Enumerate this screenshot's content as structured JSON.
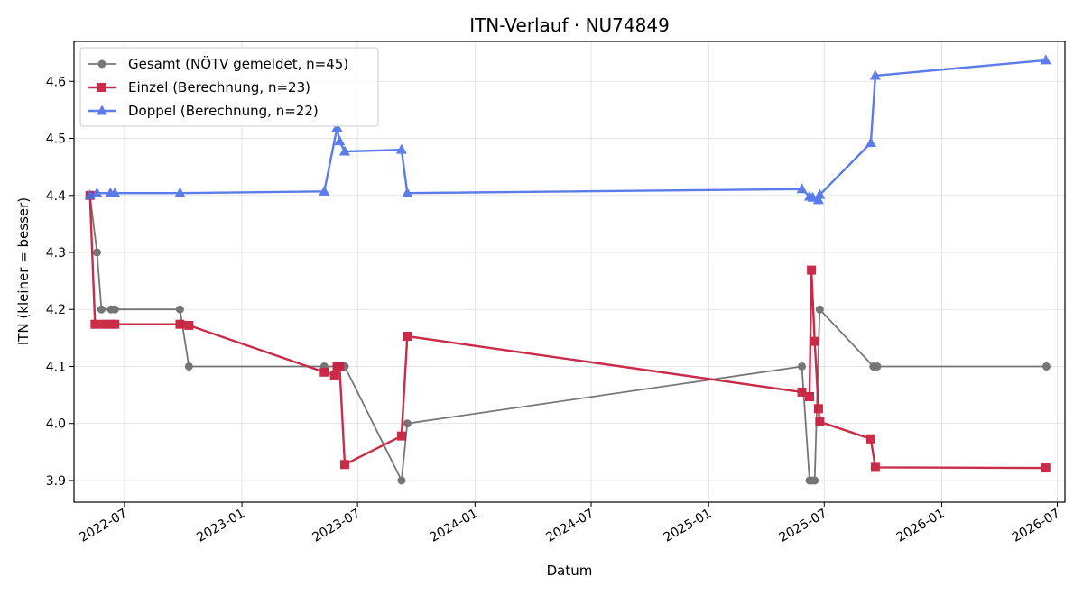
{
  "chart_data": {
    "type": "line",
    "title": "ITN-Verlauf · NU74849",
    "xlabel": "Datum",
    "ylabel": "ITN  (kleiner = besser)",
    "x_axis": "date",
    "xlim": [
      "2022-04-13",
      "2026-07-13"
    ],
    "ylim": [
      3.862,
      4.67
    ],
    "x_ticks": [
      "2022-07",
      "2023-01",
      "2023-07",
      "2024-01",
      "2024-07",
      "2025-01",
      "2025-07",
      "2026-01",
      "2026-07"
    ],
    "y_ticks": [
      "3.9",
      "4.0",
      "4.1",
      "4.2",
      "4.3",
      "4.4",
      "4.5",
      "4.6"
    ],
    "grid": true,
    "legend_position": "top-left",
    "series": [
      {
        "name": "Gesamt (NÖTV gemeldet, n=45)",
        "color": "#555555",
        "marker": "circle",
        "points": [
          [
            "2022-05-08",
            4.4
          ],
          [
            "2022-05-19",
            4.3
          ],
          [
            "2022-05-26",
            4.2
          ],
          [
            "2022-06-10",
            4.2
          ],
          [
            "2022-06-16",
            4.2
          ],
          [
            "2022-09-26",
            4.2
          ],
          [
            "2022-10-10",
            4.1
          ],
          [
            "2023-05-10",
            4.1
          ],
          [
            "2023-05-30",
            4.1
          ],
          [
            "2023-06-02",
            4.1
          ],
          [
            "2023-06-06",
            4.1
          ],
          [
            "2023-06-11",
            4.1
          ],
          [
            "2023-09-08",
            3.9
          ],
          [
            "2023-09-17",
            4.0
          ],
          [
            "2025-05-27",
            4.1
          ],
          [
            "2025-06-08",
            3.9
          ],
          [
            "2025-06-12",
            3.9
          ],
          [
            "2025-06-16",
            3.9
          ],
          [
            "2025-06-24",
            4.2
          ],
          [
            "2025-09-16",
            4.1
          ],
          [
            "2025-09-22",
            4.1
          ],
          [
            "2026-06-14",
            4.1
          ]
        ]
      },
      {
        "name": "Einzel (Berechnung, n=23)",
        "color": "#c8203e",
        "marker": "square",
        "points": [
          [
            "2022-05-08",
            4.4
          ],
          [
            "2022-05-16",
            4.174
          ],
          [
            "2022-05-30",
            4.174
          ],
          [
            "2022-06-09",
            4.174
          ],
          [
            "2022-06-16",
            4.174
          ],
          [
            "2022-09-26",
            4.174
          ],
          [
            "2022-10-10",
            4.172
          ],
          [
            "2023-05-10",
            4.09
          ],
          [
            "2023-05-26",
            4.085
          ],
          [
            "2023-05-30",
            4.1
          ],
          [
            "2023-06-03",
            4.1
          ],
          [
            "2023-06-11",
            3.928
          ],
          [
            "2023-09-08",
            3.978
          ],
          [
            "2023-09-17",
            4.153
          ],
          [
            "2025-05-27",
            4.055
          ],
          [
            "2025-06-08",
            4.047
          ],
          [
            "2025-06-11",
            4.269
          ],
          [
            "2025-06-16",
            4.144
          ],
          [
            "2025-06-22",
            4.026
          ],
          [
            "2025-06-24",
            4.003
          ],
          [
            "2025-09-12",
            3.973
          ],
          [
            "2025-09-19",
            3.923
          ],
          [
            "2026-06-13",
            3.922
          ]
        ]
      },
      {
        "name": "Doppel (Berechnung, n=22)",
        "color": "#4a6ee8",
        "marker": "triangle",
        "points": [
          [
            "2022-05-08",
            4.4
          ],
          [
            "2022-05-19",
            4.404
          ],
          [
            "2022-06-09",
            4.404
          ],
          [
            "2022-06-16",
            4.404
          ],
          [
            "2022-09-26",
            4.404
          ],
          [
            "2023-05-10",
            4.407
          ],
          [
            "2023-05-30",
            4.519
          ],
          [
            "2023-06-03",
            4.495
          ],
          [
            "2023-06-11",
            4.477
          ],
          [
            "2023-09-08",
            4.48
          ],
          [
            "2023-09-17",
            4.404
          ],
          [
            "2025-05-27",
            4.411
          ],
          [
            "2025-06-08",
            4.398
          ],
          [
            "2025-06-13",
            4.396
          ],
          [
            "2025-06-22",
            4.392
          ],
          [
            "2025-06-24",
            4.401
          ],
          [
            "2025-09-12",
            4.492
          ],
          [
            "2025-09-19",
            4.61
          ],
          [
            "2026-06-13",
            4.637
          ]
        ]
      }
    ]
  }
}
